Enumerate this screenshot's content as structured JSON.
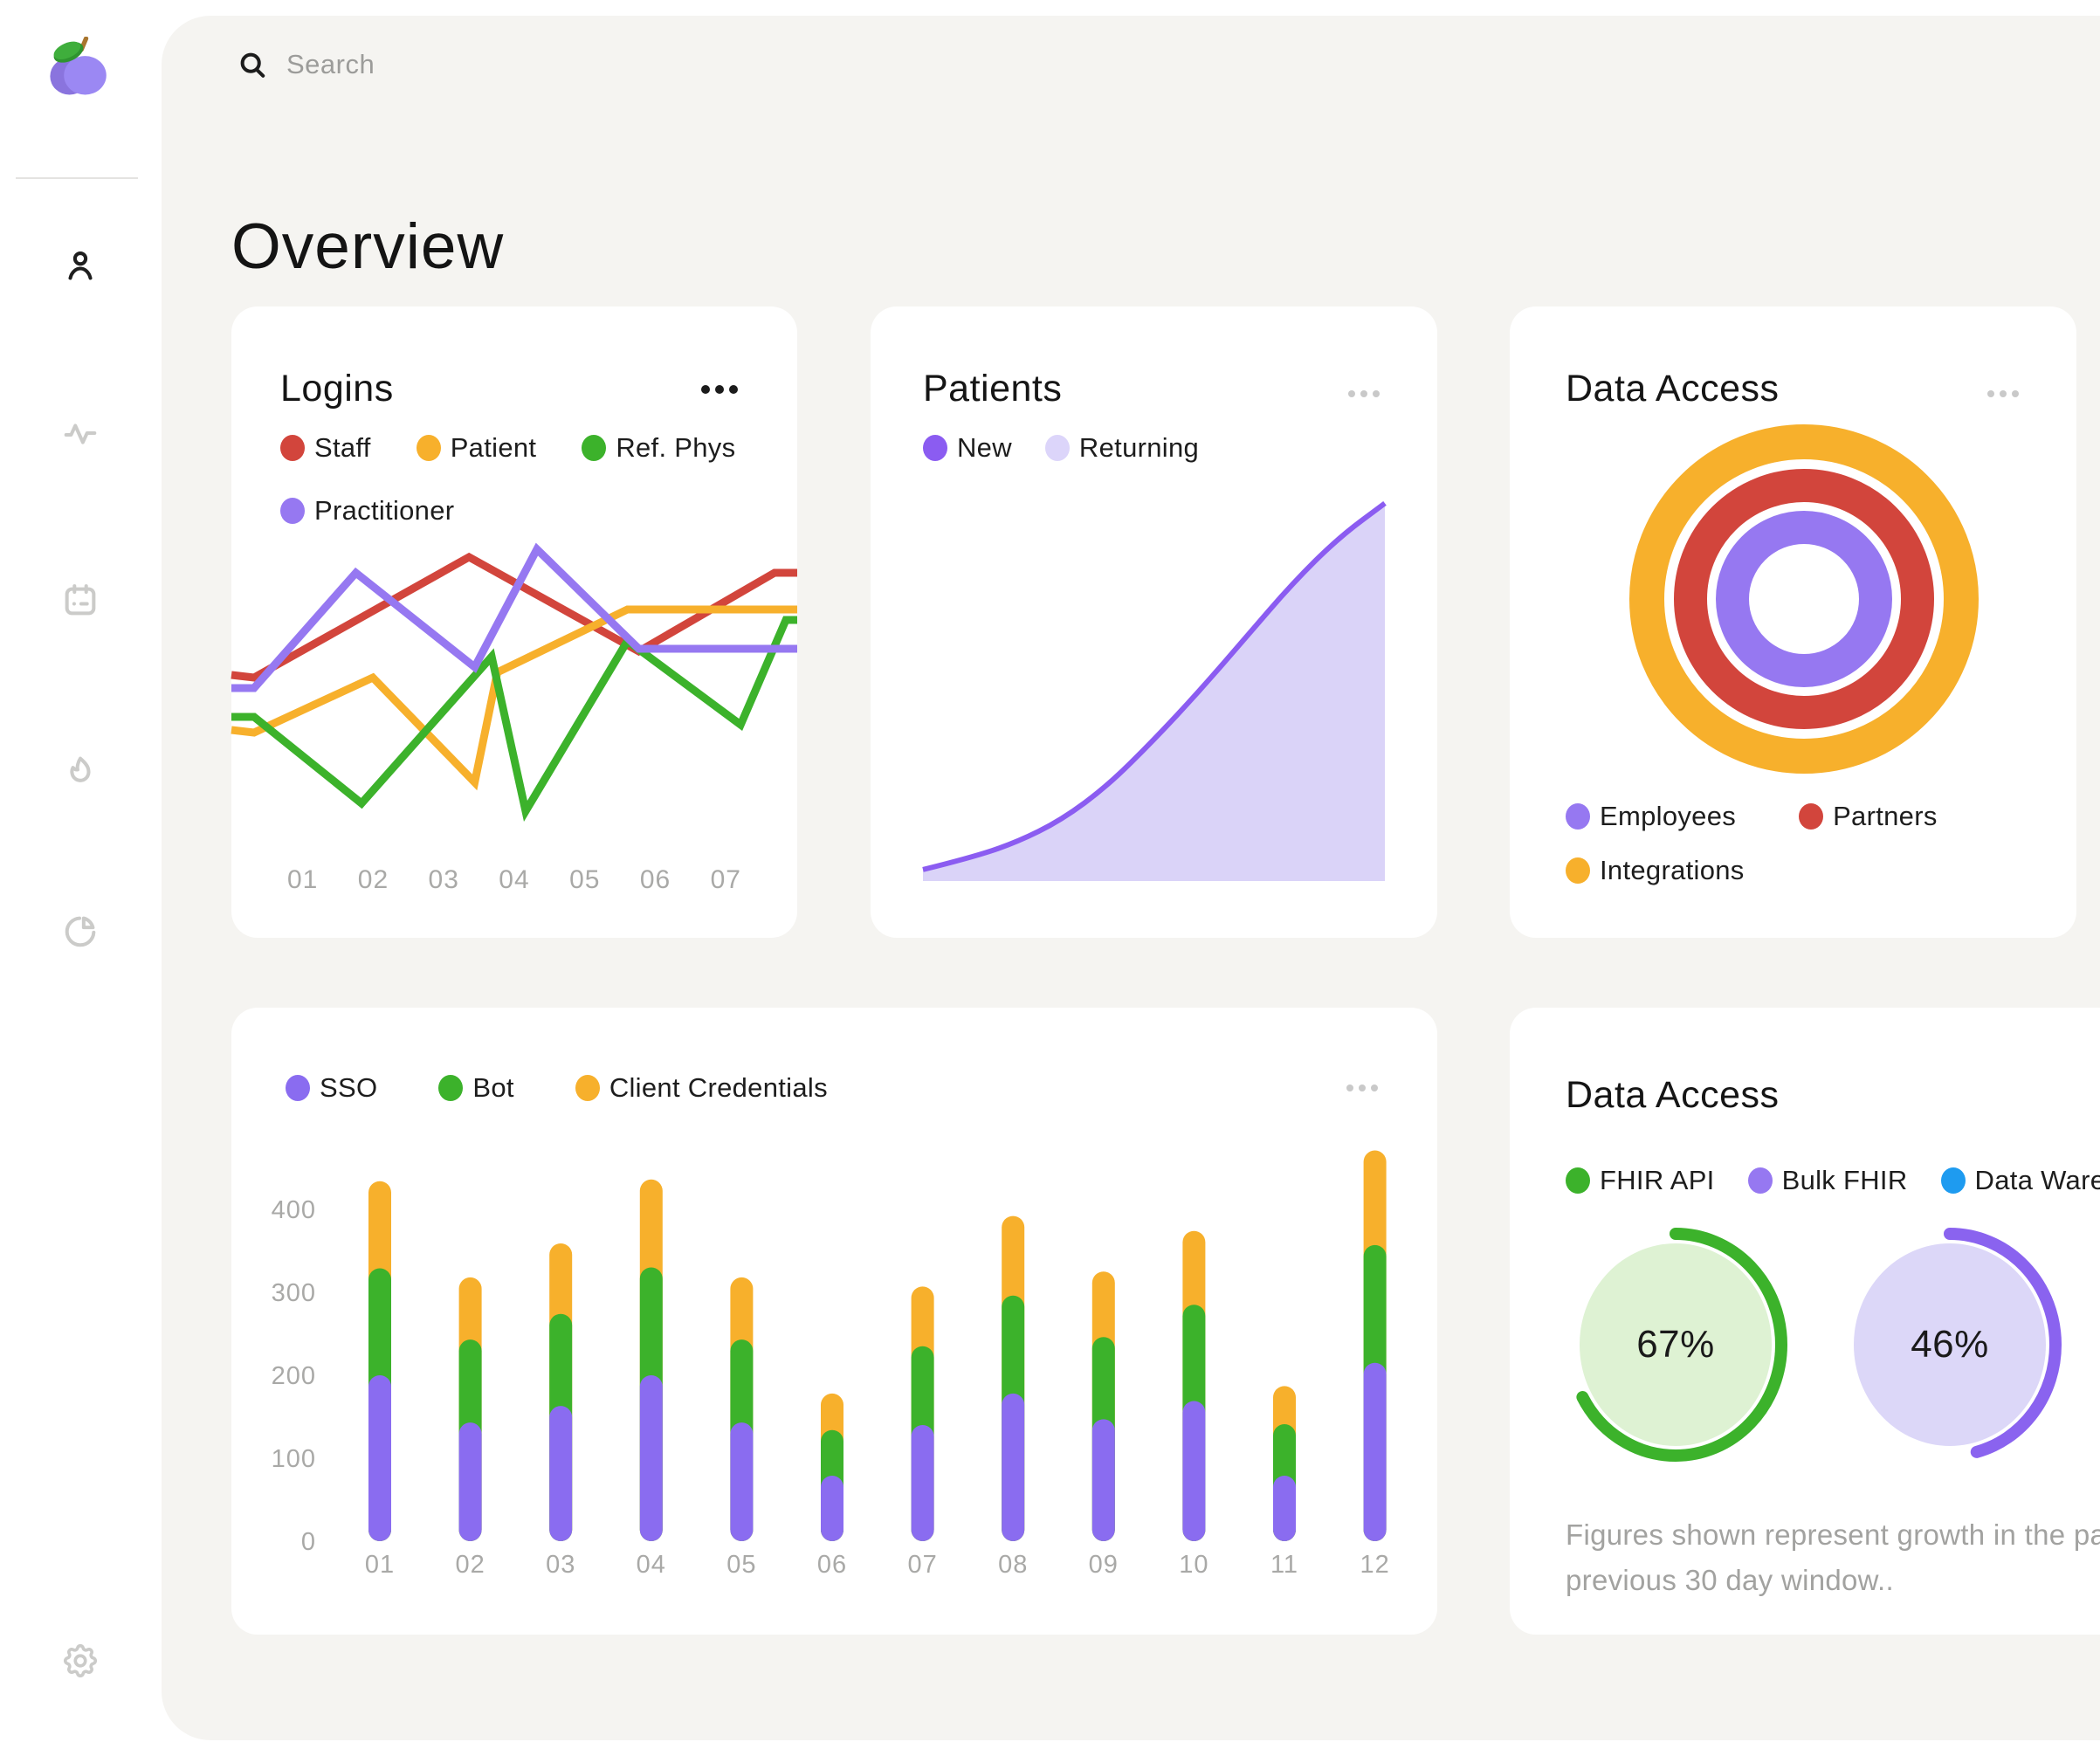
{
  "search": {
    "placeholder": "Search"
  },
  "page": {
    "title": "Overview"
  },
  "sidebar": {
    "logo": "plum-logo",
    "icons": [
      "user",
      "activity",
      "calendar",
      "flame",
      "pie-chart",
      "settings"
    ],
    "active_icon": "user"
  },
  "cards": {
    "logins": {
      "title": "Logins",
      "legend": [
        {
          "label": "Staff",
          "color": "#d2453c"
        },
        {
          "label": "Patient",
          "color": "#f7b02c"
        },
        {
          "label": "Ref. Phys",
          "color": "#3cb22b"
        },
        {
          "label": "Practitioner",
          "color": "#9678f1"
        }
      ],
      "chart_data": {
        "type": "line",
        "x_labels": [
          "01",
          "02",
          "03",
          "04",
          "05",
          "06",
          "07"
        ],
        "y_axis": "hidden (values are relative, 0-100 of chart height)",
        "series": [
          {
            "name": "Staff",
            "color": "#d2453c",
            "points_pct": [
              [
                0,
                48
              ],
              [
                4,
                49
              ],
              [
                42,
                3
              ],
              [
                72,
                39
              ],
              [
                96,
                9
              ],
              [
                100,
                9
              ]
            ]
          },
          {
            "name": "Patient",
            "color": "#f7b02c",
            "points_pct": [
              [
                0,
                69
              ],
              [
                4,
                70
              ],
              [
                25,
                49
              ],
              [
                43,
                89
              ],
              [
                47,
                47
              ],
              [
                70,
                23
              ],
              [
                100,
                23
              ]
            ]
          },
          {
            "name": "Ref. Phys",
            "color": "#3cb22b",
            "points_pct": [
              [
                0,
                64
              ],
              [
                4,
                64
              ],
              [
                23,
                97
              ],
              [
                46,
                41
              ],
              [
                52,
                100
              ],
              [
                70,
                35
              ],
              [
                90,
                67
              ],
              [
                98,
                27
              ],
              [
                100,
                27
              ]
            ]
          },
          {
            "name": "Practitioner",
            "color": "#9678f1",
            "points_pct": [
              [
                0,
                53
              ],
              [
                4,
                53
              ],
              [
                22,
                9
              ],
              [
                43,
                45
              ],
              [
                54,
                0
              ],
              [
                72,
                38
              ],
              [
                100,
                38
              ]
            ]
          }
        ]
      }
    },
    "patients": {
      "title": "Patients",
      "legend": [
        {
          "label": "New",
          "color": "#8b5cf1"
        },
        {
          "label": "Returning",
          "color": "#dcd5fa"
        }
      ],
      "chart_data": {
        "type": "area",
        "x_axis": "hidden",
        "y_axis": "hidden (values are relative, 0-100 of chart height)",
        "line_color": "#8b5cf1",
        "fill_color": "#dad3f8",
        "points_pct": [
          [
            0,
            97
          ],
          [
            10,
            94
          ],
          [
            20,
            90
          ],
          [
            30,
            84
          ],
          [
            40,
            75
          ],
          [
            50,
            63
          ],
          [
            60,
            50
          ],
          [
            70,
            36
          ],
          [
            80,
            22
          ],
          [
            90,
            10
          ],
          [
            100,
            1
          ]
        ]
      }
    },
    "data_access_rings": {
      "title": "Data Access",
      "legend": [
        {
          "label": "Employees",
          "color": "#9678f1"
        },
        {
          "label": "Partners",
          "color": "#d2453c"
        },
        {
          "label": "Integrations",
          "color": "#f7b02c"
        }
      ],
      "chart_data": {
        "type": "concentric-rings",
        "rings": [
          {
            "name": "Integrations",
            "color": "#f7b02c",
            "radius": 180,
            "thickness": 40
          },
          {
            "name": "Partners",
            "color": "#d2453c",
            "radius": 130,
            "thickness": 38
          },
          {
            "name": "Employees",
            "color": "#9678f1",
            "radius": 82,
            "thickness": 38
          }
        ]
      }
    },
    "auth_logins": {
      "legend": [
        {
          "label": "SSO",
          "color": "#8a6cf0"
        },
        {
          "label": "Bot",
          "color": "#3cb22b"
        },
        {
          "label": "Client Credentials",
          "color": "#f7b02c"
        }
      ],
      "chart_data": {
        "type": "bar",
        "stacked": true,
        "categories": [
          "01",
          "02",
          "03",
          "04",
          "05",
          "06",
          "07",
          "08",
          "09",
          "10",
          "11",
          "12"
        ],
        "y_ticks": [
          0,
          100,
          200,
          300,
          400
        ],
        "ylim": [
          0,
          480
        ],
        "series": [
          {
            "name": "SSO",
            "color": "#8a6cf0",
            "values": [
              200,
              143,
              163,
              200,
              143,
              79,
              140,
              178,
              147,
              169,
              79,
              215
            ]
          },
          {
            "name": "Bot",
            "color": "#3cb22b",
            "values": [
              129,
              100,
              111,
              130,
              100,
              55,
              95,
              118,
              99,
              116,
              62,
              142
            ]
          },
          {
            "name": "Client Credentials",
            "color": "#f7b02c",
            "values": [
              105,
              75,
              85,
              106,
              75,
              44,
              72,
              96,
              79,
              89,
              46,
              114
            ]
          }
        ]
      }
    },
    "data_access_growth": {
      "title": "Data Access",
      "legend": [
        {
          "label": "FHIR API",
          "color": "#3cb22b"
        },
        {
          "label": "Bulk FHIR",
          "color": "#9678f1"
        },
        {
          "label": "Data Warehouse",
          "color": "#1e9bf0"
        }
      ],
      "chart_data": {
        "type": "gauges",
        "gauges": [
          {
            "label": "67%",
            "value": 67,
            "arc_color": "#3cb22b",
            "fill_color": "#def2d3"
          },
          {
            "label": "46%",
            "value": 46,
            "arc_color": "#8a63ef",
            "fill_color": "#dcd7f8"
          }
        ]
      },
      "footnote_line1": "Figures shown represent growth in the past",
      "footnote_line2": "previous 30 day window.."
    }
  }
}
